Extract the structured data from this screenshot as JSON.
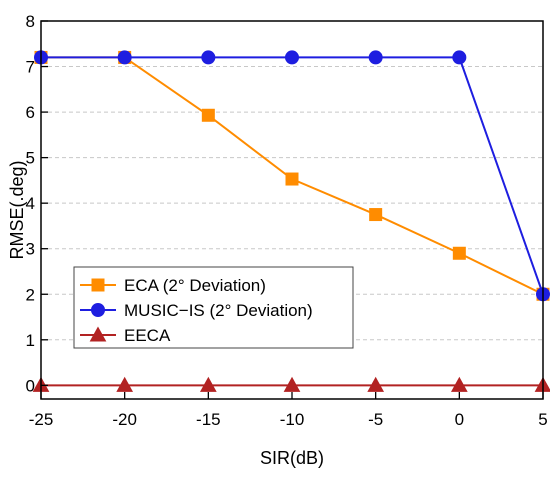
{
  "chart_data": {
    "type": "line",
    "title": "",
    "xlabel": "SIR(dB)",
    "ylabel": "RMSE(.deg)",
    "xlim": [
      -25,
      5
    ],
    "ylim": [
      -0.3,
      8
    ],
    "x_ticks": [
      -25,
      -20,
      -15,
      -10,
      -5,
      0,
      5
    ],
    "y_ticks": [
      0,
      1,
      2,
      3,
      4,
      5,
      6,
      7,
      8
    ],
    "grid": "horizontal dashed",
    "legend_position": "lower-left",
    "x": [
      -25,
      -20,
      -15,
      -10,
      -5,
      0,
      5
    ],
    "series": [
      {
        "name": "ECA (2° Deviation)",
        "color": "#FF8C00",
        "marker": "square",
        "values": [
          7.2,
          7.2,
          5.93,
          4.53,
          3.75,
          2.9,
          2.0
        ]
      },
      {
        "name": "MUSIC−IS (2° Deviation)",
        "color": "#1E1EE0",
        "marker": "circle",
        "values": [
          7.2,
          7.2,
          7.2,
          7.2,
          7.2,
          7.2,
          2.0
        ]
      },
      {
        "name": "EECA",
        "color": "#B22222",
        "marker": "triangle",
        "values": [
          0,
          0,
          0,
          0,
          0,
          0,
          0
        ]
      }
    ]
  }
}
